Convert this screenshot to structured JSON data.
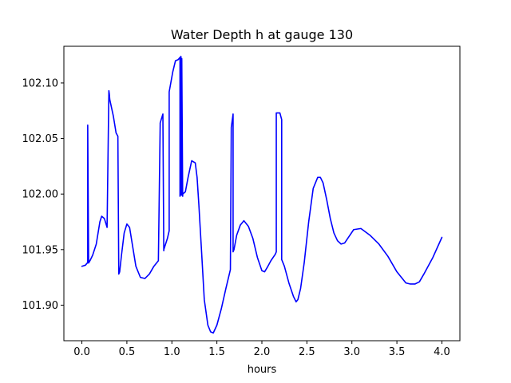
{
  "chart_data": {
    "type": "line",
    "title": "Water Depth h at gauge 130",
    "xlabel": "hours",
    "ylabel": "",
    "xlim": [
      -0.2,
      4.2
    ],
    "ylim": [
      101.868,
      102.133
    ],
    "grid": false,
    "x_ticks": [
      {
        "value": 0.0,
        "label": "0.0"
      },
      {
        "value": 0.5,
        "label": "0.5"
      },
      {
        "value": 1.0,
        "label": "1.0"
      },
      {
        "value": 1.5,
        "label": "1.5"
      },
      {
        "value": 2.0,
        "label": "2.0"
      },
      {
        "value": 2.5,
        "label": "2.5"
      },
      {
        "value": 3.0,
        "label": "3.0"
      },
      {
        "value": 3.5,
        "label": "3.5"
      },
      {
        "value": 4.0,
        "label": "4.0"
      }
    ],
    "y_ticks": [
      {
        "value": 101.9,
        "label": "101.90"
      },
      {
        "value": 101.95,
        "label": "101.95"
      },
      {
        "value": 102.0,
        "label": "102.00"
      },
      {
        "value": 102.05,
        "label": "102.05"
      },
      {
        "value": 102.1,
        "label": "102.10"
      }
    ],
    "series": [
      {
        "color": "#0000ff",
        "x": [
          0.0,
          0.04,
          0.06,
          0.065,
          0.065,
          0.075,
          0.09,
          0.12,
          0.16,
          0.2,
          0.22,
          0.25,
          0.28,
          0.3,
          0.305,
          0.31,
          0.35,
          0.38,
          0.4,
          0.41,
          0.41,
          0.42,
          0.44,
          0.47,
          0.5,
          0.53,
          0.56,
          0.6,
          0.65,
          0.7,
          0.75,
          0.8,
          0.85,
          0.87,
          0.87,
          0.9,
          0.91,
          0.91,
          0.95,
          0.97,
          0.97,
          1.01,
          1.04,
          1.07,
          1.09,
          1.09,
          1.1,
          1.1,
          1.11,
          1.11,
          1.12,
          1.12,
          1.15,
          1.18,
          1.22,
          1.26,
          1.28,
          1.3,
          1.33,
          1.36,
          1.4,
          1.43,
          1.46,
          1.5,
          1.55,
          1.6,
          1.65,
          1.66,
          1.66,
          1.68,
          1.68,
          1.69,
          1.72,
          1.76,
          1.8,
          1.85,
          1.9,
          1.95,
          2.0,
          2.03,
          2.06,
          2.1,
          2.15,
          2.16,
          2.16,
          2.2,
          2.22,
          2.22,
          2.25,
          2.3,
          2.35,
          2.38,
          2.4,
          2.43,
          2.47,
          2.52,
          2.57,
          2.62,
          2.65,
          2.68,
          2.72,
          2.76,
          2.8,
          2.84,
          2.88,
          2.92,
          2.97,
          3.02,
          3.1,
          3.2,
          3.3,
          3.4,
          3.5,
          3.6,
          3.65,
          3.7,
          3.75,
          3.8,
          3.9,
          4.0
        ],
        "y": [
          101.935,
          101.936,
          101.938,
          101.938,
          102.062,
          101.938,
          101.94,
          101.945,
          101.955,
          101.975,
          101.98,
          101.978,
          101.97,
          102.093,
          102.09,
          102.085,
          102.07,
          102.055,
          102.052,
          101.929,
          101.928,
          101.93,
          101.945,
          101.965,
          101.973,
          101.97,
          101.955,
          101.935,
          101.925,
          101.924,
          101.928,
          101.935,
          101.94,
          102.063,
          102.064,
          102.072,
          101.949,
          101.95,
          101.96,
          101.967,
          102.092,
          102.11,
          102.12,
          102.121,
          102.123,
          101.998,
          102.0,
          102.124,
          101.999,
          102.122,
          101.998,
          102.0,
          102.002,
          102.015,
          102.03,
          102.028,
          102.015,
          101.99,
          101.948,
          101.905,
          101.882,
          101.876,
          101.875,
          101.882,
          101.897,
          101.915,
          101.932,
          102.06,
          102.06,
          102.072,
          101.948,
          101.95,
          101.963,
          101.972,
          101.976,
          101.971,
          101.96,
          101.943,
          101.931,
          101.93,
          101.934,
          101.94,
          101.946,
          101.948,
          102.073,
          102.073,
          102.067,
          101.941,
          101.935,
          101.92,
          101.908,
          101.903,
          101.905,
          101.915,
          101.938,
          101.975,
          102.005,
          102.015,
          102.015,
          102.01,
          101.995,
          101.978,
          101.965,
          101.958,
          101.955,
          101.956,
          101.962,
          101.968,
          101.969,
          101.963,
          101.955,
          101.944,
          101.93,
          101.92,
          101.919,
          101.919,
          101.921,
          101.928,
          101.943,
          101.961
        ]
      }
    ]
  }
}
